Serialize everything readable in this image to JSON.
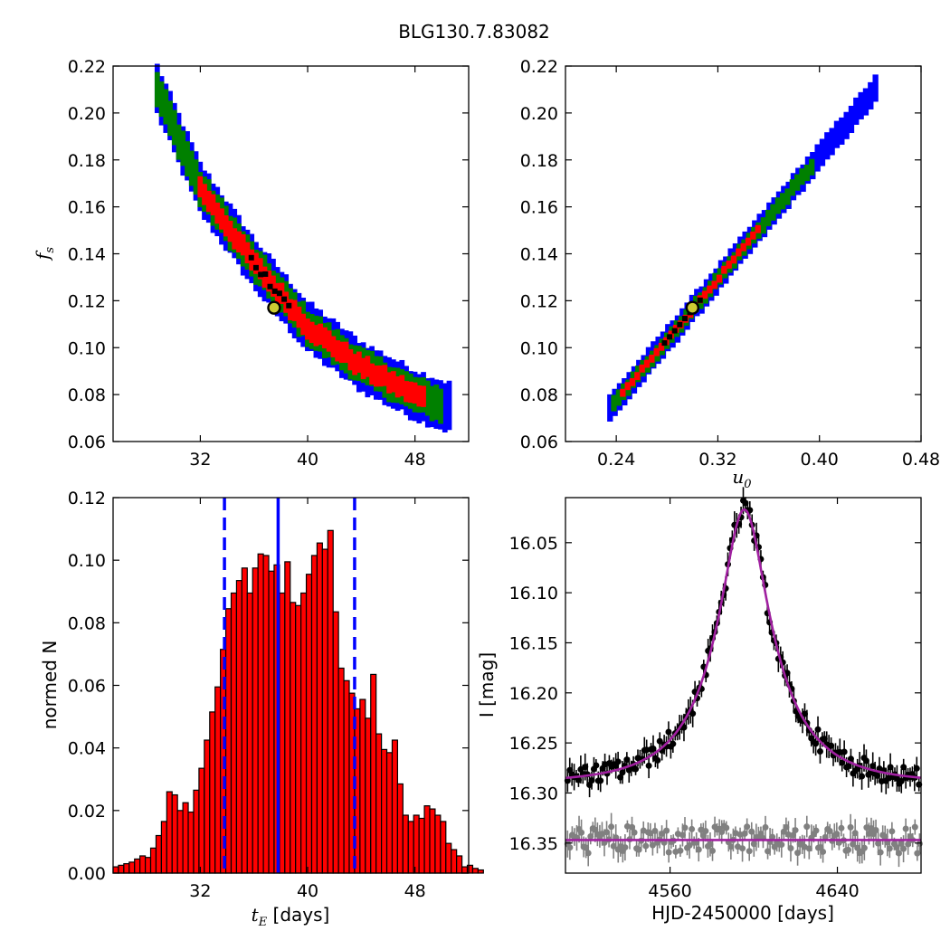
{
  "figure": {
    "title": "BLG130.7.83082"
  },
  "colors": {
    "sigma3": "#0000ff",
    "sigma2": "#008000",
    "sigma1": "#ff0000",
    "best": "#000000",
    "marker_fill": "#cccc33",
    "hist_bar": "#ff0000",
    "hist_lines": "#0000ff",
    "model": "#a020a0",
    "lc_main": "#000000",
    "lc_resid": "#808080"
  },
  "chart_data": [
    {
      "id": "fs-vs-tE",
      "type": "scatter",
      "xlabel": "",
      "ylabel_main": "f",
      "ylabel_sub": "s",
      "xlim": [
        25.5,
        52
      ],
      "ylim": [
        0.06,
        0.22
      ],
      "xticks": [
        32,
        40,
        48
      ],
      "yticks": [
        0.06,
        0.08,
        0.1,
        0.12,
        0.14,
        0.16,
        0.18,
        0.2,
        0.22
      ],
      "ytick_labels": [
        "0.06",
        "0.08",
        "0.10",
        "0.12",
        "0.14",
        "0.16",
        "0.18",
        "0.20",
        "0.22"
      ],
      "band": {
        "x_range": [
          28.8,
          50.8
        ],
        "centre_fs_at_x": {
          "28.8": 0.21,
          "32": 0.168,
          "36": 0.136,
          "40": 0.109,
          "44": 0.092,
          "48": 0.08,
          "50.8": 0.074
        }
      },
      "best_fit": {
        "x": 37.5,
        "y": 0.117
      }
    },
    {
      "id": "fs-vs-u0",
      "type": "scatter",
      "xlabel_main": "u",
      "xlabel_sub": "0",
      "ylabel": "",
      "xlim": [
        0.2,
        0.48
      ],
      "ylim": [
        0.06,
        0.22
      ],
      "xticks": [
        0.24,
        0.32,
        0.4,
        0.48
      ],
      "xtick_labels": [
        "0.24",
        "0.32",
        "0.40",
        "0.48"
      ],
      "yticks": [
        0.06,
        0.08,
        0.1,
        0.12,
        0.14,
        0.16,
        0.18,
        0.2,
        0.22
      ],
      "ytick_labels": [
        "0.06",
        "0.08",
        "0.10",
        "0.12",
        "0.14",
        "0.16",
        "0.18",
        "0.20",
        "0.22"
      ],
      "band": {
        "x_range": [
          0.235,
          0.447
        ],
        "y_range": [
          0.074,
          0.212
        ]
      },
      "best_fit": {
        "x": 0.3,
        "y": 0.117
      }
    },
    {
      "id": "tE-histogram",
      "type": "bar",
      "xlabel_main": "t",
      "xlabel_sub": "E",
      "xlabel_unit": " [days]",
      "ylabel": "normed N",
      "xlim": [
        25.5,
        52
      ],
      "ylim": [
        0,
        0.12
      ],
      "xticks": [
        32,
        40,
        48
      ],
      "yticks": [
        0,
        0.02,
        0.04,
        0.06,
        0.08,
        0.1,
        0.12
      ],
      "ytick_labels": [
        "0.00",
        "0.02",
        "0.04",
        "0.06",
        "0.08",
        "0.10",
        "0.12"
      ],
      "bin_start": 25.5,
      "bin_width": 0.4,
      "values": [
        0.002,
        0.0025,
        0.003,
        0.0035,
        0.0045,
        0.0055,
        0.005,
        0.008,
        0.012,
        0.0165,
        0.026,
        0.025,
        0.02,
        0.0225,
        0.0195,
        0.0265,
        0.0335,
        0.0425,
        0.0515,
        0.0595,
        0.0715,
        0.0845,
        0.0895,
        0.0935,
        0.0975,
        0.0895,
        0.0975,
        0.102,
        0.1015,
        0.0965,
        0.0985,
        0.0895,
        0.0995,
        0.0865,
        0.0855,
        0.0895,
        0.0955,
        0.1015,
        0.1055,
        0.1035,
        0.1095,
        0.0835,
        0.0655,
        0.0615,
        0.0575,
        0.0525,
        0.0555,
        0.0495,
        0.0635,
        0.0445,
        0.0395,
        0.0385,
        0.0425,
        0.0285,
        0.0185,
        0.0165,
        0.0185,
        0.0175,
        0.0215,
        0.0205,
        0.0185,
        0.0165,
        0.0095,
        0.0075,
        0.0055,
        0.002,
        0.0025,
        0.0015,
        0.001
      ],
      "vlines": [
        {
          "x": 33.8,
          "style": "dashed"
        },
        {
          "x": 37.8,
          "style": "solid"
        },
        {
          "x": 43.5,
          "style": "dashed"
        }
      ]
    },
    {
      "id": "light-curve",
      "type": "scatter",
      "xlabel": "HJD-2450000 [days]",
      "ylabel": "I [mag]",
      "xlim": [
        4510,
        4680
      ],
      "ylim": [
        16.38,
        16.005
      ],
      "xticks": [
        4560,
        4640
      ],
      "yticks": [
        16.05,
        16.1,
        16.15,
        16.2,
        16.25,
        16.3,
        16.35
      ],
      "ytick_labels": [
        "16.05",
        "16.10",
        "16.15",
        "16.20",
        "16.25",
        "16.30",
        "16.35"
      ],
      "model": {
        "t0": 4595.5,
        "tE": 37.5,
        "u0": 0.3,
        "fs": 0.117,
        "I_base": 16.29
      },
      "residual_baseline": 16.347,
      "observations": {
        "t": [
          4513,
          4519,
          4525,
          4531,
          4537,
          4543,
          4549,
          4555,
          4561,
          4567,
          4573,
          4577,
          4581,
          4584,
          4587,
          4589,
          4591,
          4593,
          4595,
          4597,
          4599,
          4601,
          4603,
          4606,
          4609,
          4613,
          4617,
          4621,
          4627,
          4633,
          4639,
          4645,
          4651,
          4657,
          4663,
          4669,
          4675
        ],
        "I": [
          16.292,
          16.285,
          16.283,
          16.274,
          16.28,
          16.276,
          16.268,
          16.258,
          16.243,
          16.231,
          16.2,
          16.168,
          16.14,
          16.1,
          16.075,
          16.05,
          16.035,
          16.022,
          16.015,
          16.02,
          16.035,
          16.06,
          16.095,
          16.14,
          16.172,
          16.2,
          16.226,
          16.243,
          16.258,
          16.265,
          16.275,
          16.28,
          16.283,
          16.282,
          16.286,
          16.289,
          16.29
        ]
      }
    }
  ]
}
